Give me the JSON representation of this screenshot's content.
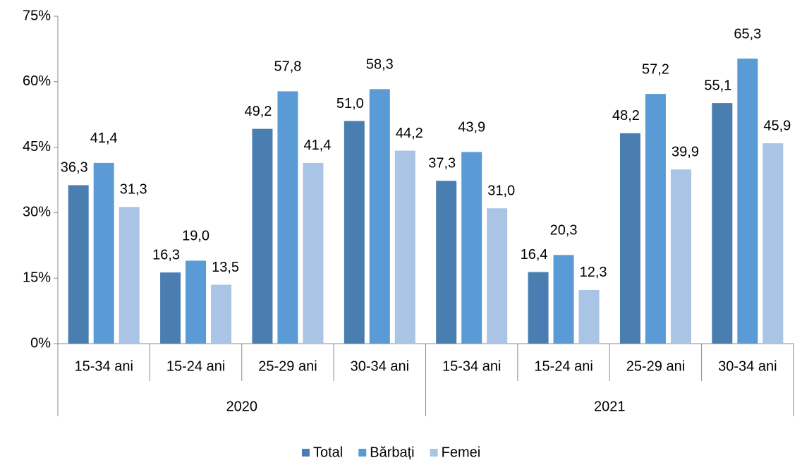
{
  "chart_data": {
    "type": "bar",
    "categories": [
      "15-34 ani",
      "15-24 ani",
      "25-29 ani",
      "30-34 ani",
      "15-34 ani",
      "15-24 ani",
      "25-29 ani",
      "30-34 ani"
    ],
    "category_groups": [
      "2020",
      "2021"
    ],
    "series": [
      {
        "name": "Total",
        "color": "#4a7eb0",
        "values": [
          36.3,
          16.3,
          49.2,
          51.0,
          37.3,
          16.4,
          48.2,
          55.1
        ],
        "value_labels": [
          "36,3",
          "16,3",
          "49,2",
          "51,0",
          "37,3",
          "16,4",
          "48,2",
          "55,1"
        ]
      },
      {
        "name": "Bărbați",
        "color": "#5b9bd5",
        "values": [
          41.4,
          19.0,
          57.8,
          58.3,
          43.9,
          20.3,
          57.2,
          65.3
        ],
        "value_labels": [
          "41,4",
          "19,0",
          "57,8",
          "58,3",
          "43,9",
          "20,3",
          "57,2",
          "65,3"
        ]
      },
      {
        "name": "Femei",
        "color": "#a9c4e4",
        "values": [
          31.3,
          13.5,
          41.4,
          44.2,
          31.0,
          12.3,
          39.9,
          45.9
        ],
        "value_labels": [
          "31,3",
          "13,5",
          "41,4",
          "44,2",
          "31,0",
          "12,3",
          "39,9",
          "45,9"
        ]
      }
    ],
    "ylim": [
      0,
      75
    ],
    "yticks": [
      {
        "value": 0,
        "label": "0%"
      },
      {
        "value": 15,
        "label": "15%"
      },
      {
        "value": 30,
        "label": "30%"
      },
      {
        "value": 45,
        "label": "45%"
      },
      {
        "value": 60,
        "label": "60%"
      },
      {
        "value": 75,
        "label": "75%"
      }
    ],
    "legend": "bottom"
  }
}
